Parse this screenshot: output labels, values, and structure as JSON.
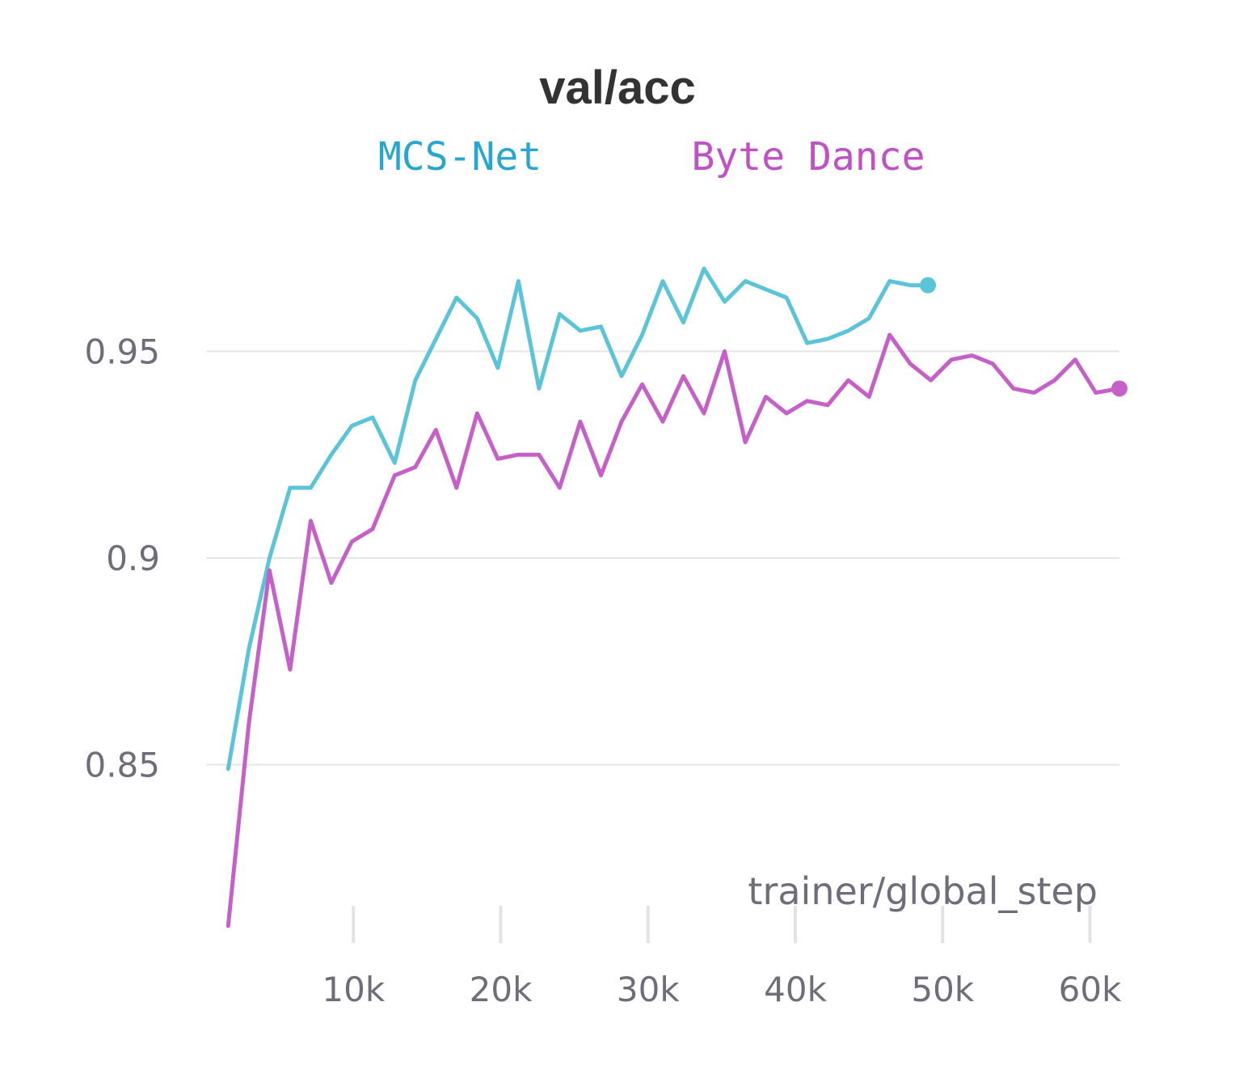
{
  "chart_data": {
    "type": "line",
    "title": "val/acc",
    "xlabel": "trainer/global_step",
    "ylabel": "",
    "xlim": [
      0,
      62000
    ],
    "ylim": [
      0.81,
      0.99
    ],
    "grid": true,
    "legend_position": "top",
    "x_ticks": [
      {
        "value": 10000,
        "label": "10k"
      },
      {
        "value": 20000,
        "label": "20k"
      },
      {
        "value": 30000,
        "label": "30k"
      },
      {
        "value": 40000,
        "label": "40k"
      },
      {
        "value": 50000,
        "label": "50k"
      },
      {
        "value": 60000,
        "label": "60k"
      }
    ],
    "y_ticks": [
      {
        "value": 0.85,
        "label": "0.85"
      },
      {
        "value": 0.9,
        "label": "0.9"
      },
      {
        "value": 0.95,
        "label": "0.95"
      }
    ],
    "series": [
      {
        "name": "MCS-Net",
        "color": "#5bc4d8",
        "legend_color": "#27a7cf",
        "x": [
          1500,
          2900,
          4300,
          5700,
          7100,
          8500,
          9900,
          11300,
          12800,
          14200,
          15600,
          17000,
          18400,
          19800,
          21200,
          22600,
          24000,
          25400,
          26800,
          28200,
          29600,
          31000,
          32400,
          33800,
          35200,
          36600,
          38000,
          39400,
          40800,
          42200,
          43600,
          45000,
          46400,
          47800,
          49000
        ],
        "y": [
          0.849,
          0.878,
          0.9,
          0.917,
          0.917,
          0.925,
          0.932,
          0.934,
          0.923,
          0.943,
          0.953,
          0.963,
          0.958,
          0.946,
          0.967,
          0.941,
          0.959,
          0.955,
          0.956,
          0.944,
          0.954,
          0.967,
          0.957,
          0.97,
          0.962,
          0.967,
          0.965,
          0.963,
          0.952,
          0.953,
          0.955,
          0.958,
          0.967,
          0.966,
          0.966
        ]
      },
      {
        "name": "Byte Dance",
        "color": "#c560c9",
        "legend_color": "#c14fc6",
        "x": [
          1500,
          2900,
          4300,
          5700,
          7100,
          8500,
          9900,
          11300,
          12800,
          14200,
          15600,
          17000,
          18400,
          19800,
          21200,
          22600,
          24000,
          25400,
          26800,
          28200,
          29600,
          31000,
          32400,
          33800,
          35200,
          36600,
          38000,
          39400,
          40800,
          42200,
          43600,
          45000,
          46400,
          47800,
          49200,
          50600,
          52000,
          53400,
          54800,
          56200,
          57600,
          59000,
          60400,
          62000
        ],
        "y": [
          0.811,
          0.86,
          0.897,
          0.873,
          0.909,
          0.894,
          0.904,
          0.907,
          0.92,
          0.922,
          0.931,
          0.917,
          0.935,
          0.924,
          0.925,
          0.925,
          0.917,
          0.933,
          0.92,
          0.933,
          0.942,
          0.933,
          0.944,
          0.935,
          0.95,
          0.928,
          0.939,
          0.935,
          0.938,
          0.937,
          0.943,
          0.939,
          0.954,
          0.947,
          0.943,
          0.948,
          0.949,
          0.947,
          0.941,
          0.94,
          0.943,
          0.948,
          0.94,
          0.941
        ]
      }
    ]
  }
}
